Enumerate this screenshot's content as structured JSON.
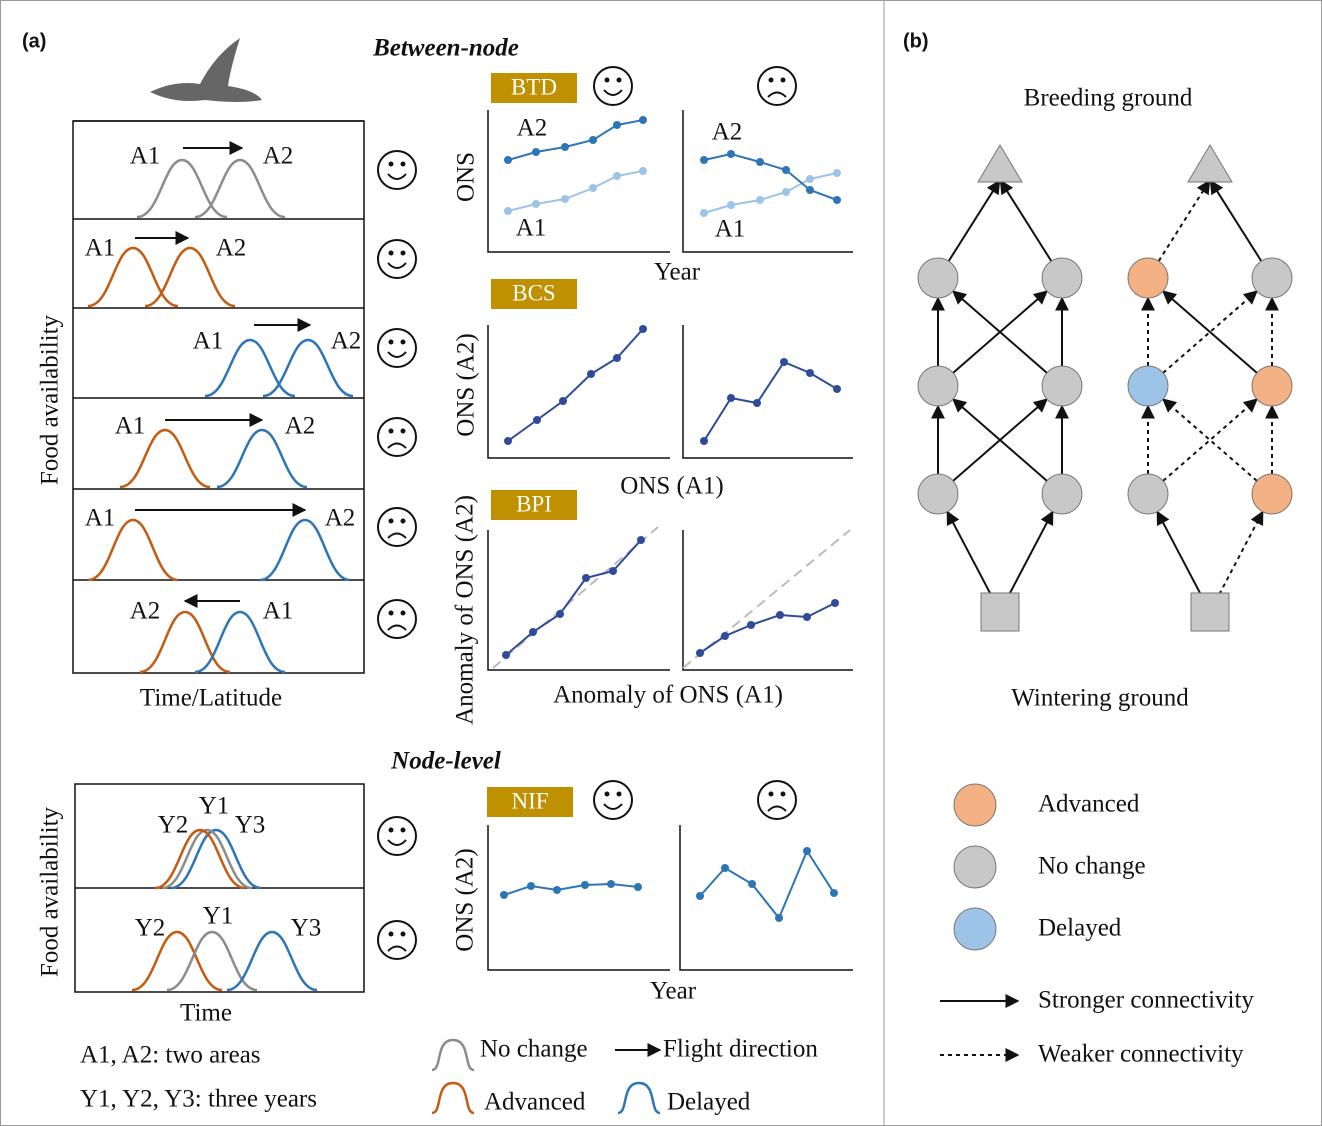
{
  "panel_a": {
    "label": "(a)",
    "between_node": {
      "title": "Between-node",
      "rows": [
        [
          "A1",
          "A2"
        ],
        [
          "A1",
          "A2"
        ],
        [
          "A1",
          "A2"
        ],
        [
          "A1",
          "A2"
        ],
        [
          "A1",
          "A2"
        ],
        [
          "A2",
          "A1"
        ]
      ],
      "y_label": "Food availability",
      "x_label": "Time/Latitude",
      "btd": {
        "tag": "BTD",
        "y_label": "ONS",
        "x_label": "Year",
        "left_labels": [
          "A2",
          "A1"
        ],
        "right_labels": [
          "A2",
          "A1"
        ]
      },
      "bcs": {
        "tag": "BCS",
        "y_label": "ONS (A2)",
        "x_label": "ONS (A1)"
      },
      "bpi": {
        "tag": "BPI",
        "y_label": "Anomaly of ONS (A2)",
        "x_label": "Anomaly of ONS (A1)"
      }
    },
    "node_level": {
      "title": "Node-level",
      "rows": [
        [
          "Y2",
          "Y1",
          "Y3"
        ],
        [
          "Y2",
          "Y1",
          "Y3"
        ]
      ],
      "y_label": "Food availability",
      "x_label": "Time",
      "nif": {
        "tag": "NIF",
        "y_label": "ONS (A2)",
        "x_label": "Year"
      }
    },
    "notes": [
      "A1, A2: two areas",
      "Y1, Y2, Y3: three years"
    ],
    "legend": {
      "no_change": "No change",
      "flight_direction": "Flight direction",
      "advanced": "Advanced",
      "delayed": "Delayed"
    }
  },
  "panel_b": {
    "label": "(b)",
    "top": "Breeding ground",
    "bottom": "Wintering ground",
    "legend": [
      "Advanced",
      "No change",
      "Delayed"
    ],
    "connectivity": [
      "Stronger connectivity",
      "Weaker connectivity"
    ]
  }
}
